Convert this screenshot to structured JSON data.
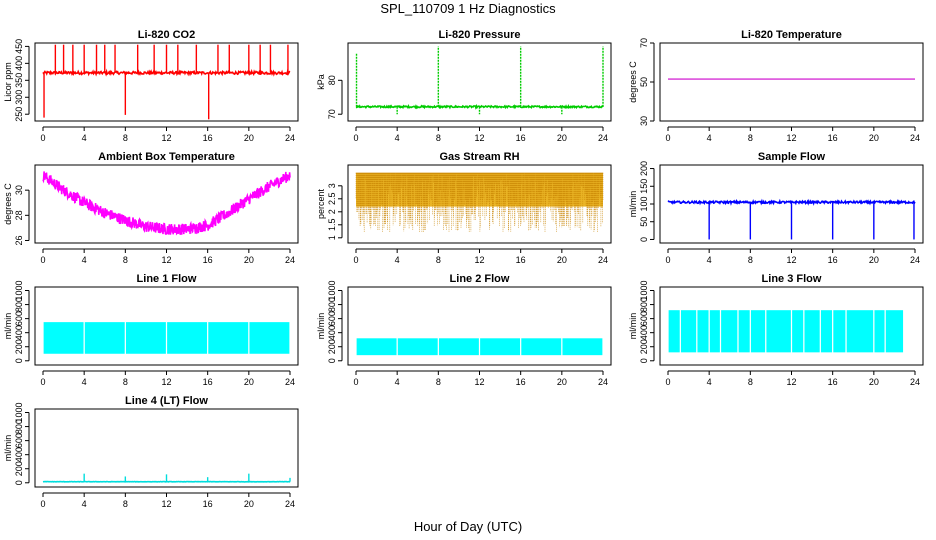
{
  "figure": {
    "title": "SPL_110709  1 Hz Diagnostics",
    "xlabel": "Hour of Day (UTC)"
  },
  "chart_data": [
    {
      "type": "line",
      "title": "Li-820 CO2",
      "ylabel": "Licor ppm",
      "color": "#ff0000",
      "xlim": [
        0,
        24
      ],
      "xticks": [
        0,
        4,
        8,
        12,
        16,
        20,
        24
      ],
      "ylim": [
        230,
        460
      ],
      "yticks": [
        250,
        300,
        350,
        400,
        450
      ],
      "pattern": "noisy_with_spikes",
      "base": 372,
      "noise": 4,
      "spikes": [
        {
          "x": 0.1,
          "y": 240
        },
        {
          "x": 1.2,
          "y": 455
        },
        {
          "x": 2.0,
          "y": 455
        },
        {
          "x": 2.9,
          "y": 455
        },
        {
          "x": 4.0,
          "y": 455
        },
        {
          "x": 5.2,
          "y": 455
        },
        {
          "x": 6.0,
          "y": 455
        },
        {
          "x": 7.0,
          "y": 455
        },
        {
          "x": 8.0,
          "y": 248
        },
        {
          "x": 9.2,
          "y": 455
        },
        {
          "x": 10.8,
          "y": 455
        },
        {
          "x": 12.0,
          "y": 455
        },
        {
          "x": 13.1,
          "y": 455
        },
        {
          "x": 14.9,
          "y": 455
        },
        {
          "x": 16.1,
          "y": 235
        },
        {
          "x": 17.0,
          "y": 455
        },
        {
          "x": 18.1,
          "y": 455
        },
        {
          "x": 20.0,
          "y": 455
        },
        {
          "x": 21.1,
          "y": 455
        },
        {
          "x": 22.1,
          "y": 455
        },
        {
          "x": 23.8,
          "y": 455
        }
      ]
    },
    {
      "type": "line",
      "title": "Li-820 Pressure",
      "ylabel": "kPa",
      "color": "#00cc00",
      "xlim": [
        0,
        24
      ],
      "xticks": [
        0,
        4,
        8,
        12,
        16,
        20,
        24
      ],
      "ylim": [
        68,
        91
      ],
      "yticks": [
        70,
        80
      ],
      "pattern": "noisy_with_spikes",
      "base": 72.2,
      "noise": 0.25,
      "spikes": [
        {
          "x": 0.05,
          "y": 88
        },
        {
          "x": 4.0,
          "y": 70
        },
        {
          "x": 8.0,
          "y": 90
        },
        {
          "x": 12.0,
          "y": 70
        },
        {
          "x": 16.0,
          "y": 90
        },
        {
          "x": 20.0,
          "y": 70
        },
        {
          "x": 24.0,
          "y": 90
        }
      ]
    },
    {
      "type": "line",
      "title": "Li-820 Temperature",
      "ylabel": "degrees C",
      "color": "#cc00cc",
      "xlim": [
        0,
        24
      ],
      "xticks": [
        0,
        4,
        8,
        12,
        16,
        20,
        24
      ],
      "ylim": [
        30,
        70
      ],
      "yticks": [
        30,
        50,
        70
      ],
      "pattern": "flat",
      "base": 51.5
    },
    {
      "type": "line",
      "title": "Ambient Box Temperature",
      "ylabel": "degrees C",
      "color": "#ff00ff",
      "xlim": [
        0,
        24
      ],
      "xticks": [
        0,
        4,
        8,
        12,
        16,
        20,
        24
      ],
      "ylim": [
        25.8,
        32
      ],
      "yticks": [
        26,
        28,
        30
      ],
      "pattern": "curve_band",
      "band": 0.9,
      "curve": [
        [
          0,
          31.2
        ],
        [
          2,
          30.0
        ],
        [
          4,
          29.0
        ],
        [
          6,
          28.2
        ],
        [
          8,
          27.6
        ],
        [
          10,
          27.1
        ],
        [
          12,
          26.9
        ],
        [
          14,
          26.9
        ],
        [
          16,
          27.2
        ],
        [
          18,
          28.2
        ],
        [
          20,
          29.3
        ],
        [
          22,
          30.3
        ],
        [
          24,
          31.2
        ]
      ]
    },
    {
      "type": "line",
      "title": "Gas Stream RH",
      "ylabel": "percent",
      "color": "#e6a800",
      "xlim": [
        0,
        24
      ],
      "xticks": [
        0,
        4,
        8,
        12,
        16,
        20,
        24
      ],
      "ylim": [
        0.8,
        3.8
      ],
      "yticks": [
        1.0,
        1.5,
        2.0,
        2.5,
        3.0
      ],
      "pattern": "dense_band",
      "low": 1.2,
      "high": 3.5
    },
    {
      "type": "line",
      "title": "Sample Flow",
      "ylabel": "ml/min",
      "color": "#0000ff",
      "xlim": [
        0,
        24
      ],
      "xticks": [
        0,
        4,
        8,
        12,
        16,
        20,
        24
      ],
      "ylim": [
        -10,
        210
      ],
      "yticks": [
        0,
        50,
        100,
        150,
        200
      ],
      "pattern": "noisy_with_spikes",
      "base": 105,
      "noise": 3,
      "spikes": [
        {
          "x": 4.0,
          "y": 0
        },
        {
          "x": 8.0,
          "y": 0
        },
        {
          "x": 12.0,
          "y": 0
        },
        {
          "x": 16.0,
          "y": 0
        },
        {
          "x": 20.0,
          "y": 0
        },
        {
          "x": 23.9,
          "y": 0
        }
      ]
    },
    {
      "type": "area",
      "title": "Line 1 Flow",
      "ylabel": "ml/min",
      "color": "#00ffff",
      "xlim": [
        0,
        24
      ],
      "xticks": [
        0,
        4,
        8,
        12,
        16,
        20,
        24
      ],
      "ylim": [
        -60,
        1050
      ],
      "yticks": [
        0,
        200,
        400,
        600,
        800,
        1000
      ],
      "pattern": "blocks",
      "low": 100,
      "high": 550,
      "gaps": [
        4,
        8,
        12,
        16,
        20,
        24
      ]
    },
    {
      "type": "area",
      "title": "Line 2 Flow",
      "ylabel": "ml/min",
      "color": "#00ffff",
      "xlim": [
        0,
        24
      ],
      "xticks": [
        0,
        4,
        8,
        12,
        16,
        20,
        24
      ],
      "ylim": [
        -60,
        1050
      ],
      "yticks": [
        0,
        200,
        400,
        600,
        800,
        1000
      ],
      "pattern": "blocks",
      "low": 80,
      "high": 320,
      "gaps": [
        4,
        8,
        12,
        16,
        20,
        24
      ]
    },
    {
      "type": "area",
      "title": "Line 3 Flow",
      "ylabel": "ml/min",
      "color": "#00ffff",
      "xlim": [
        0,
        24
      ],
      "xticks": [
        0,
        4,
        8,
        12,
        16,
        20,
        24
      ],
      "ylim": [
        -60,
        1050
      ],
      "yticks": [
        0,
        200,
        400,
        600,
        800,
        1000
      ],
      "pattern": "blocks",
      "low": 120,
      "high": 720,
      "gaps": [
        1.2,
        2.8,
        4,
        5.1,
        6.8,
        8,
        9.5,
        12,
        13.2,
        14.8,
        16,
        17.3,
        20,
        21.1,
        22.9
      ]
    },
    {
      "type": "line",
      "title": "Line 4 (LT) Flow",
      "ylabel": "ml/min",
      "color": "#00dddd",
      "xlim": [
        0,
        24
      ],
      "xticks": [
        0,
        4,
        8,
        12,
        16,
        20,
        24
      ],
      "ylim": [
        -60,
        1050
      ],
      "yticks": [
        0,
        200,
        400,
        600,
        800,
        1000
      ],
      "pattern": "noisy_with_spikes",
      "base": 15,
      "noise": 2,
      "spikes": [
        {
          "x": 4.0,
          "y": 130
        },
        {
          "x": 8.0,
          "y": 90
        },
        {
          "x": 12.0,
          "y": 120
        },
        {
          "x": 16.0,
          "y": 80
        },
        {
          "x": 20.0,
          "y": 130
        },
        {
          "x": 24.0,
          "y": 70
        }
      ]
    }
  ]
}
